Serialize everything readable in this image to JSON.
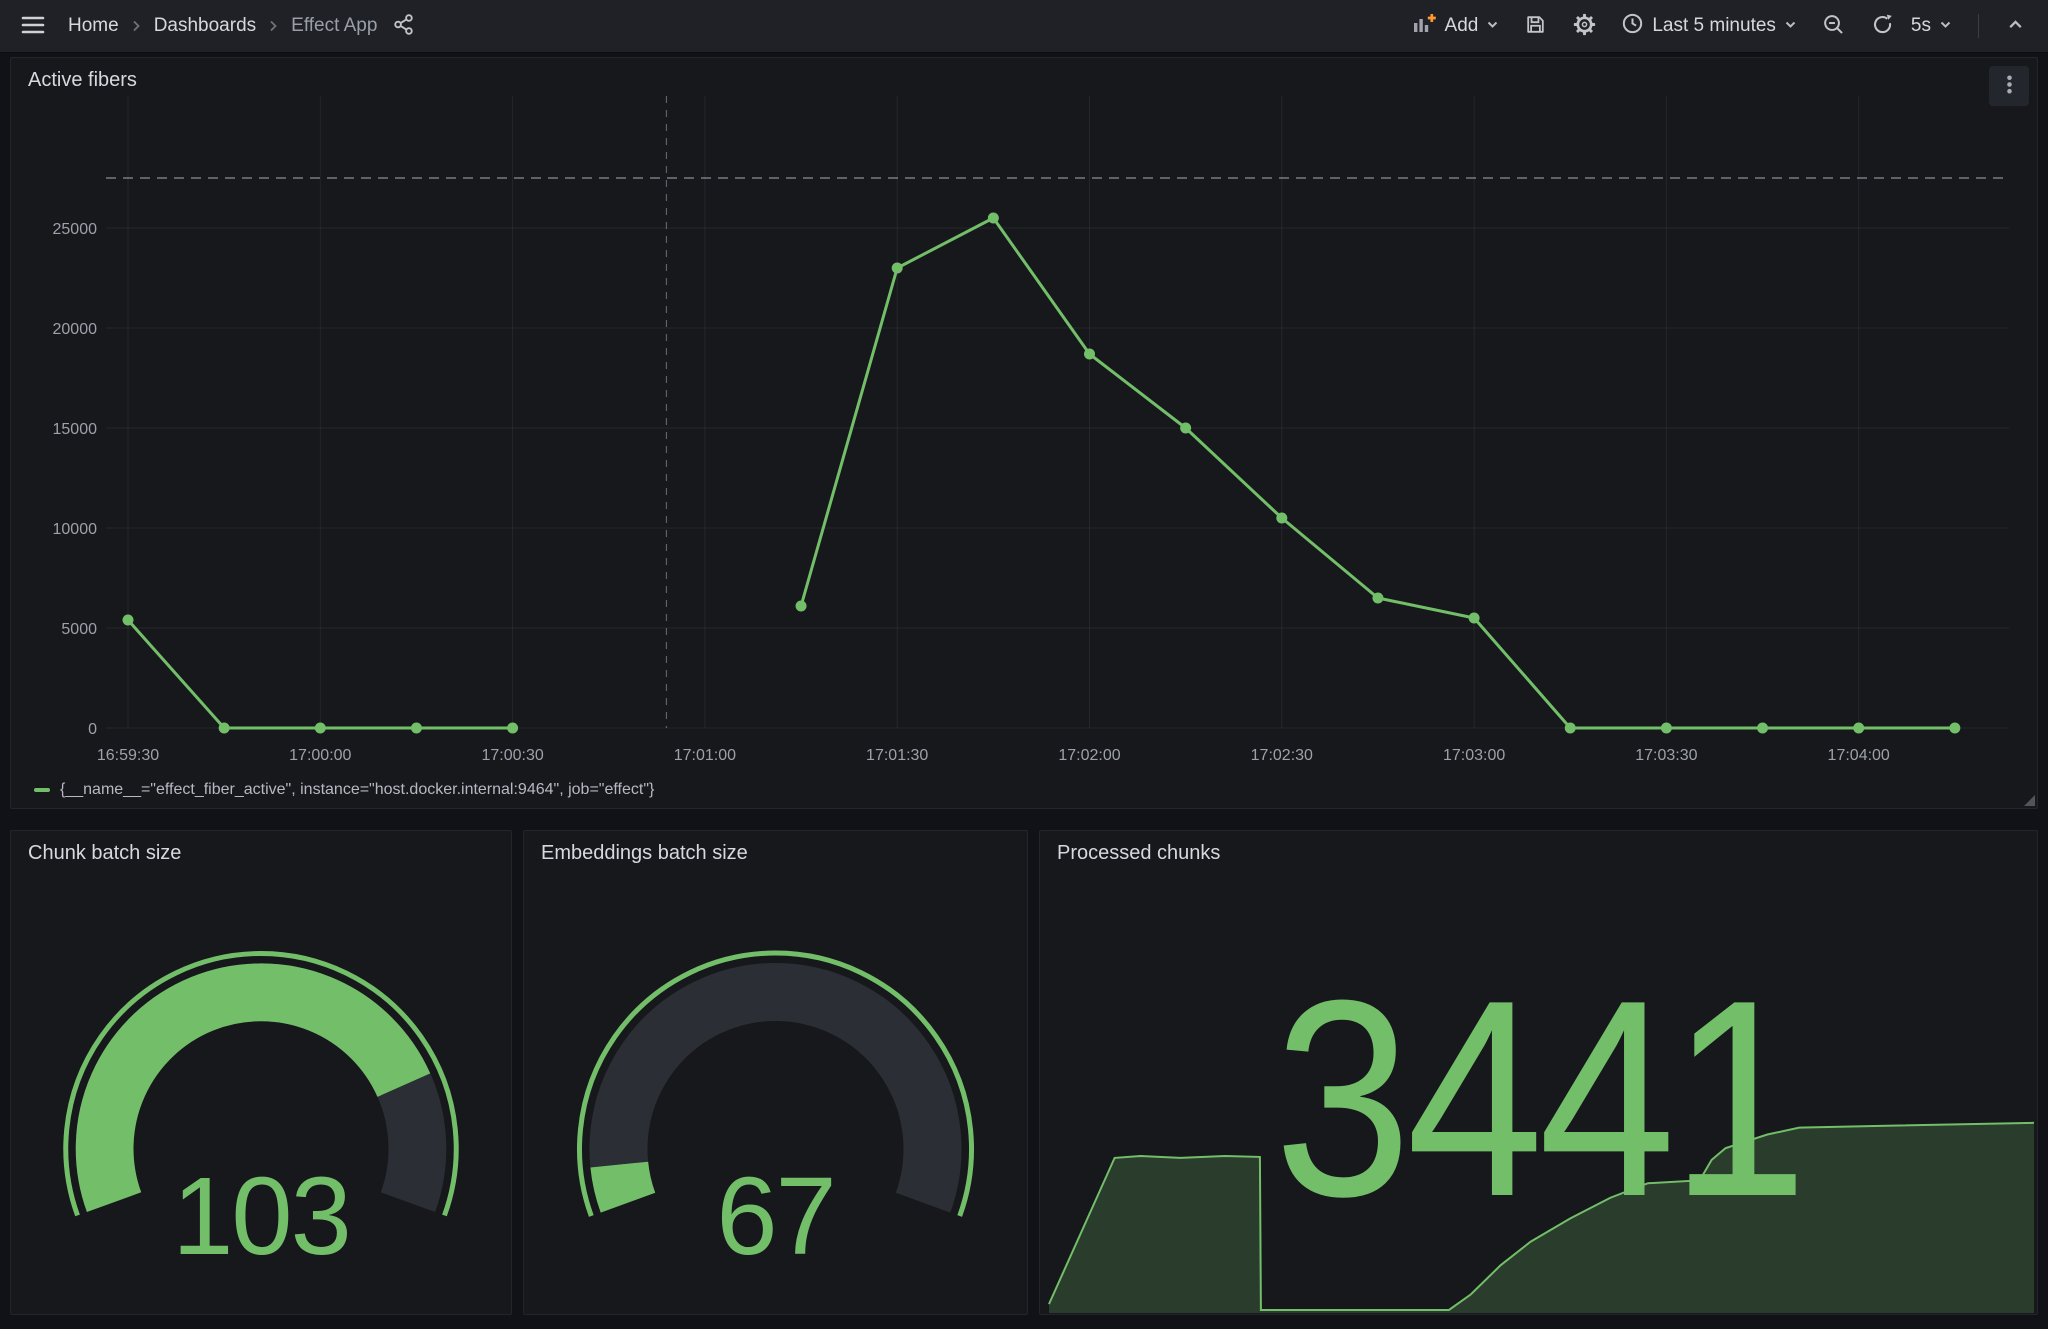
{
  "topnav": {
    "breadcrumbs": [
      "Home",
      "Dashboards",
      "Effect App"
    ],
    "add_label": "Add",
    "time_range_label": "Last 5 minutes",
    "refresh_interval_label": "5s"
  },
  "colors": {
    "series_green": "#73BF69",
    "gauge_track": "#2b2e34",
    "accent_orange": "#ff9830",
    "panel_bg": "#16181c",
    "page_bg": "#111217"
  },
  "chart_data": [
    {
      "type": "line",
      "title": "Active fibers",
      "x_ticks": [
        "16:59:30",
        "17:00:00",
        "17:00:30",
        "17:01:00",
        "17:01:30",
        "17:02:00",
        "17:02:30",
        "17:03:00",
        "17:03:30",
        "17:04:00"
      ],
      "y_ticks": [
        0,
        5000,
        10000,
        15000,
        20000,
        25000
      ],
      "ylim": [
        0,
        28850
      ],
      "grid": true,
      "legend_position": "bottom",
      "threshold_value": 27500,
      "annotation_time": "17:00:54",
      "series": [
        {
          "name": "{__name__=\"effect_fiber_active\", instance=\"host.docker.internal:9464\", job=\"effect\"}",
          "color": "#73BF69",
          "points": [
            [
              "16:59:30",
              5400
            ],
            [
              "16:59:45",
              0
            ],
            [
              "17:00:00",
              0
            ],
            [
              "17:00:15",
              0
            ],
            [
              "17:00:30",
              0
            ],
            [
              "17:00:45",
              null
            ],
            [
              "17:01:15",
              6100
            ],
            [
              "17:01:30",
              23000
            ],
            [
              "17:01:45",
              25500
            ],
            [
              "17:02:00",
              18700
            ],
            [
              "17:02:15",
              15000
            ],
            [
              "17:02:30",
              10500
            ],
            [
              "17:02:45",
              6500
            ],
            [
              "17:03:00",
              5500
            ],
            [
              "17:03:15",
              0
            ],
            [
              "17:03:30",
              0
            ],
            [
              "17:03:45",
              0
            ],
            [
              "17:04:00",
              0
            ],
            [
              "17:04:15",
              0
            ]
          ]
        }
      ]
    },
    {
      "type": "gauge",
      "title": "Chunk batch size",
      "value": 103,
      "fill_fraction": 0.8,
      "color": "#73BF69"
    },
    {
      "type": "gauge",
      "title": "Embeddings batch size",
      "value": 67,
      "fill_fraction": 0.065,
      "color": "#73BF69"
    },
    {
      "type": "stat",
      "title": "Processed chunks",
      "value": 3441,
      "color": "#73BF69",
      "sparkline": {
        "points": [
          [
            0.008,
            0.03
          ],
          [
            0.074,
            0.78
          ],
          [
            0.1,
            0.79
          ],
          [
            0.14,
            0.78
          ],
          [
            0.185,
            0.79
          ],
          [
            0.22,
            0.785
          ],
          [
            0.221,
            0.0
          ],
          [
            0.41,
            0.0
          ],
          [
            0.432,
            0.08
          ],
          [
            0.462,
            0.23
          ],
          [
            0.492,
            0.35
          ],
          [
            0.532,
            0.47
          ],
          [
            0.572,
            0.575
          ],
          [
            0.61,
            0.65
          ],
          [
            0.662,
            0.665
          ],
          [
            0.674,
            0.77
          ],
          [
            0.688,
            0.83
          ],
          [
            0.73,
            0.9
          ],
          [
            0.762,
            0.935
          ],
          [
            0.85,
            0.945
          ],
          [
            0.998,
            0.96
          ]
        ]
      }
    }
  ]
}
